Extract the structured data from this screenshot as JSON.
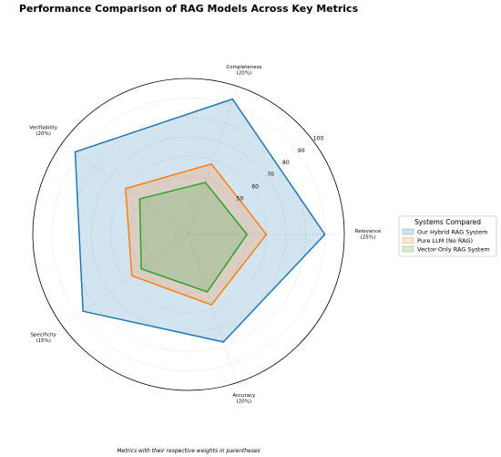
{
  "colors": {
    "hybrid": "#1f77b4",
    "pure": "#ff7f0e",
    "vector": "#2ca02c",
    "grid": "#cccccc",
    "frame": "#000000"
  },
  "chart_data": {
    "type": "radar",
    "title": "Performance Comparison of RAG Models Across Key Metrics",
    "footnote": "Metrics with their respective weights in parentheses",
    "axes": [
      {
        "name": "Relevance",
        "weight": "(25%)"
      },
      {
        "name": "Completeness",
        "weight": "(20%)"
      },
      {
        "name": "Verifiability",
        "weight": "(20%)"
      },
      {
        "name": "Specificity",
        "weight": "(15%)"
      },
      {
        "name": "Accuracy",
        "weight": "(20%)"
      }
    ],
    "rlim": [
      20,
      100
    ],
    "ticks": [
      50,
      60,
      70,
      80,
      90,
      100
    ],
    "tick_labels": [
      "50",
      "60",
      "70",
      "80",
      "90",
      "100"
    ],
    "grid": true,
    "legend": {
      "title": "Systems Compared",
      "position": "right"
    },
    "series": [
      {
        "name": "Our Hybrid RAG System",
        "color": "#1f77b4",
        "values": [
          90,
          93,
          92,
          87,
          78
        ]
      },
      {
        "name": "Pure LLM (No RAG)",
        "color": "#ff7f0e",
        "values": [
          60,
          58,
          60,
          56,
          58
        ]
      },
      {
        "name": "Vector-Only RAG System",
        "color": "#2ca02c",
        "values": [
          50,
          48,
          51,
          50,
          51
        ]
      }
    ]
  }
}
